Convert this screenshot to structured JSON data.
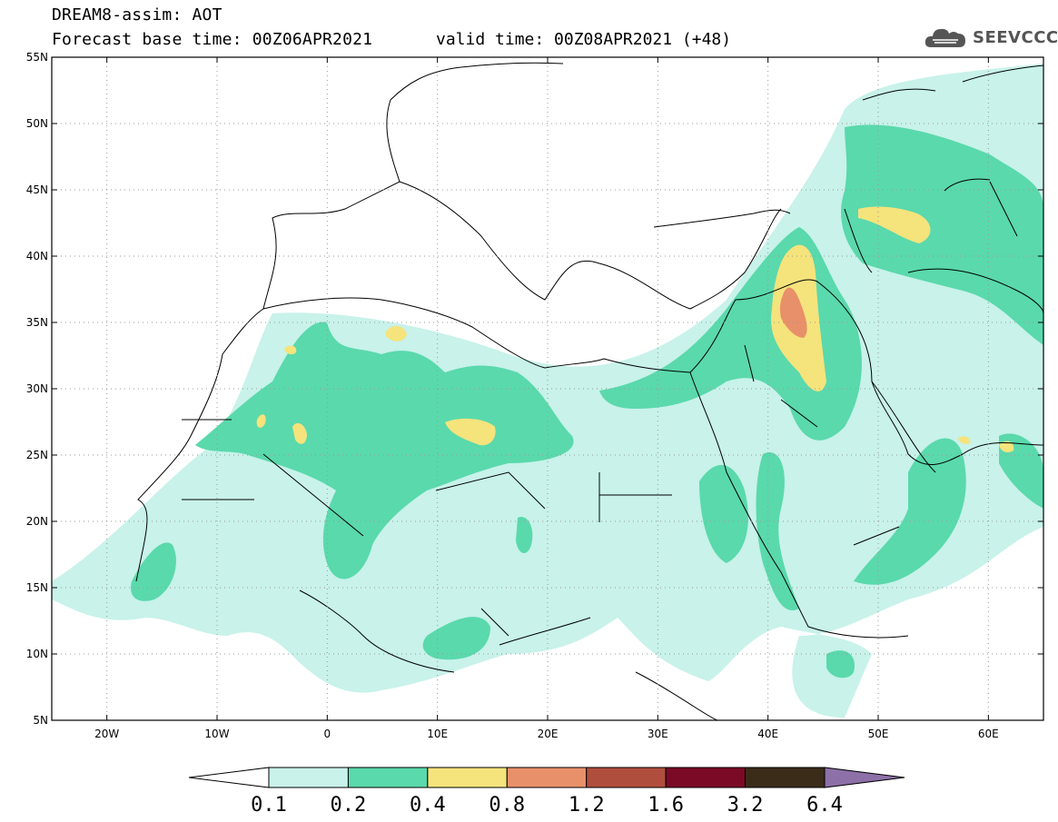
{
  "header": {
    "title_line1": "DREAM8-assim: AOT",
    "title_line2": "Forecast base time: 00Z06APR2021",
    "valid_time": "valid time: 00Z08APR2021 (+48)",
    "logo_text": "SEEVCCC",
    "logo_icon": "cloud-icon"
  },
  "map": {
    "lon_range": [
      -25,
      65
    ],
    "lat_range": [
      5,
      55
    ],
    "lat_ticks": [
      "55N",
      "50N",
      "45N",
      "40N",
      "35N",
      "30N",
      "25N",
      "20N",
      "15N",
      "10N",
      "5N"
    ],
    "lon_ticks": [
      "20W",
      "10W",
      "0",
      "10E",
      "20E",
      "30E",
      "40E",
      "50E",
      "60E"
    ],
    "grid": "dotted"
  },
  "colorbar": {
    "labels": [
      "0.1",
      "0.2",
      "0.4",
      "0.8",
      "1.2",
      "1.6",
      "3.2",
      "6.4"
    ],
    "colors": [
      "#c8f2ea",
      "#5ad9ac",
      "#f5e37c",
      "#e8906a",
      "#b04e3e",
      "#7a0a26",
      "#3b2c1a",
      "#8d70a8"
    ],
    "below_color": "#ffffff"
  }
}
